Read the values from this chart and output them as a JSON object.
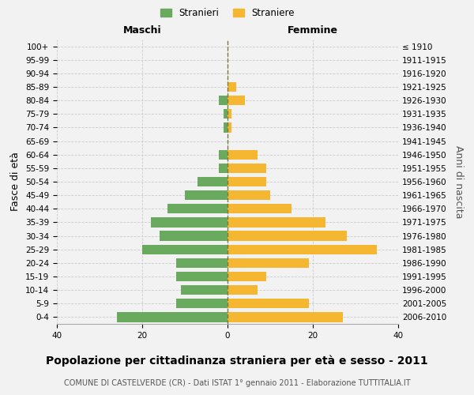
{
  "age_groups": [
    "100+",
    "95-99",
    "90-94",
    "85-89",
    "80-84",
    "75-79",
    "70-74",
    "65-69",
    "60-64",
    "55-59",
    "50-54",
    "45-49",
    "40-44",
    "35-39",
    "30-34",
    "25-29",
    "20-24",
    "15-19",
    "10-14",
    "5-9",
    "0-4"
  ],
  "birth_years": [
    "≤ 1910",
    "1911-1915",
    "1916-1920",
    "1921-1925",
    "1926-1930",
    "1931-1935",
    "1936-1940",
    "1941-1945",
    "1946-1950",
    "1951-1955",
    "1956-1960",
    "1961-1965",
    "1966-1970",
    "1971-1975",
    "1976-1980",
    "1981-1985",
    "1986-1990",
    "1991-1995",
    "1996-2000",
    "2001-2005",
    "2006-2010"
  ],
  "maschi": [
    0,
    0,
    0,
    0,
    2,
    1,
    1,
    0,
    2,
    2,
    7,
    10,
    14,
    18,
    16,
    20,
    12,
    12,
    11,
    12,
    26
  ],
  "femmine": [
    0,
    0,
    0,
    2,
    4,
    1,
    1,
    0,
    7,
    9,
    9,
    10,
    15,
    23,
    28,
    35,
    19,
    9,
    7,
    19,
    27
  ],
  "maschi_color": "#6aaa5e",
  "femmine_color": "#f5b731",
  "background_color": "#f2f2f2",
  "title": "Popolazione per cittadinanza straniera per età e sesso - 2011",
  "subtitle": "COMUNE DI CASTELVERDE (CR) - Dati ISTAT 1° gennaio 2011 - Elaborazione TUTTITALIA.IT",
  "xlabel_left": "Maschi",
  "xlabel_right": "Femmine",
  "ylabel_left": "Fasce di età",
  "ylabel_right": "Anni di nascita",
  "xlim": 40,
  "legend_stranieri": "Stranieri",
  "legend_straniere": "Straniere",
  "grid_color": "#cccccc",
  "center_line_color": "#7a7a3a",
  "title_fontsize": 10,
  "subtitle_fontsize": 7,
  "tick_fontsize": 7.5,
  "label_fontsize": 9
}
